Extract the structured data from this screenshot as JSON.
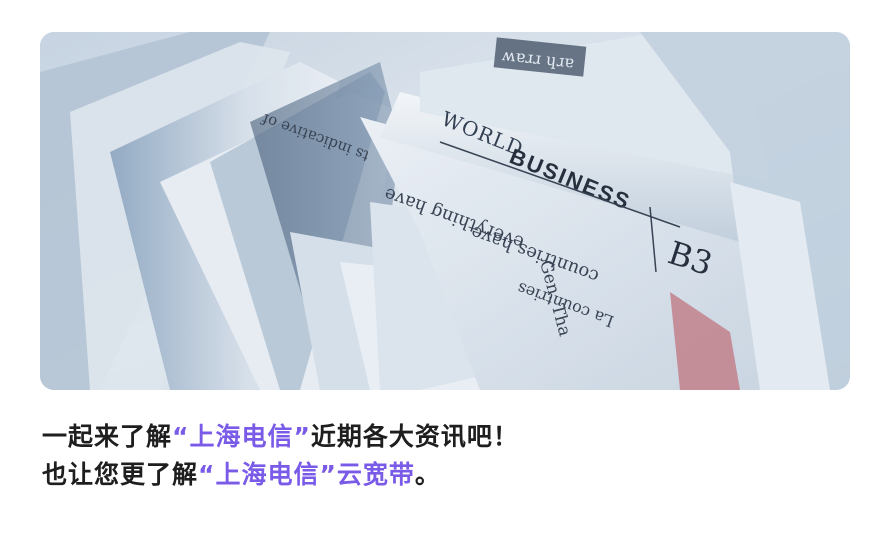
{
  "hero_image": {
    "newspaper_texts": {
      "section_title_1": "WORLD",
      "section_title_2": "BUSINESS",
      "page_code": "B3",
      "line_a": "ts indicative of",
      "line_b": "everything have",
      "line_c": "Gen. Tha",
      "line_d": "countries have",
      "line_e": "La countries",
      "masthead_fragment": "ʍɐɹɹ ɥɹɐ"
    },
    "colors": {
      "paper_light": "#f2f4f7",
      "paper_shadow": "#9fb3c9",
      "ink": "#1a2233",
      "accent_red": "#c87a82"
    }
  },
  "caption": {
    "line1_prefix": "一起来了解",
    "line1_highlight": "“上海电信”",
    "line1_suffix": "近期各大资讯吧！",
    "line2_prefix": "也让您更了解",
    "line2_highlight": "“上海电信”云宽带",
    "line2_suffix": "。",
    "highlight_color": "#7a5be8"
  }
}
